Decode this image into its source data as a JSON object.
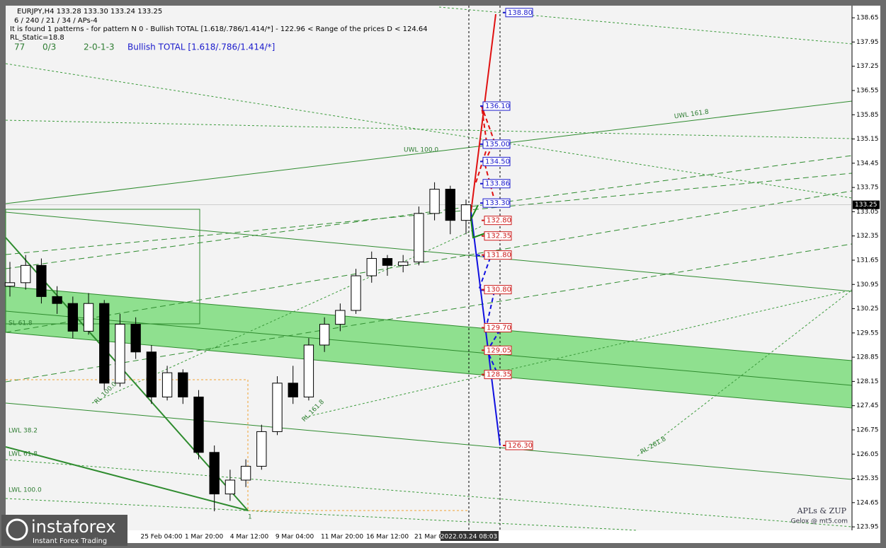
{
  "chart_data": {
    "type": "candlestick",
    "symbol_line": "EURJPY,H4  133.28 133.30 133.24 133.25",
    "params_line": "6 / 240 / 21 / 34 / APs-4",
    "pattern_line": "It is found 1 patterns  -  for pattern N 0 - Bullish TOTAL [1.618/.786/1.414/*] - 122.96 < Range of the prices D < 124.64",
    "static_line": "RL_Static=18.8",
    "stats": [
      "77",
      "0/3",
      "2-0-1-3"
    ],
    "pattern_name": "Bullish TOTAL [1.618/.786/1.414/*]",
    "ylim": [
      123.85,
      139.0
    ],
    "yticks": [
      123.95,
      124.65,
      125.35,
      126.05,
      126.75,
      127.45,
      128.15,
      128.85,
      129.55,
      130.25,
      130.95,
      131.65,
      132.35,
      133.05,
      133.75,
      134.45,
      135.15,
      135.85,
      136.55,
      137.25,
      137.95,
      138.65
    ],
    "current_price": 133.25,
    "time_labels": [
      "25 Feb 04:00",
      "1 Mar 20:00",
      "4 Mar 12:00",
      "9 Mar 04:00",
      "11 Mar 20:00",
      "16 Mar 12:00",
      "21 Mar 0",
      "2022.03.24 08:03"
    ],
    "candles": [
      {
        "open": 130.9,
        "high": 131.6,
        "low": 130.6,
        "close": 131.0
      },
      {
        "open": 131.0,
        "high": 131.8,
        "low": 130.8,
        "close": 131.5
      },
      {
        "open": 131.5,
        "high": 131.7,
        "low": 130.4,
        "close": 130.6
      },
      {
        "open": 130.6,
        "high": 130.9,
        "low": 130.1,
        "close": 130.4
      },
      {
        "open": 130.4,
        "high": 130.6,
        "low": 129.4,
        "close": 129.6
      },
      {
        "open": 129.6,
        "high": 130.7,
        "low": 129.5,
        "close": 130.4
      },
      {
        "open": 130.4,
        "high": 130.5,
        "low": 127.9,
        "close": 128.1
      },
      {
        "open": 128.1,
        "high": 130.1,
        "low": 128.0,
        "close": 129.8
      },
      {
        "open": 129.8,
        "high": 130.0,
        "low": 128.8,
        "close": 129.0
      },
      {
        "open": 129.0,
        "high": 129.2,
        "low": 127.5,
        "close": 127.7
      },
      {
        "open": 127.7,
        "high": 128.6,
        "low": 127.6,
        "close": 128.4
      },
      {
        "open": 128.4,
        "high": 128.5,
        "low": 127.5,
        "close": 127.7
      },
      {
        "open": 127.7,
        "high": 127.9,
        "low": 125.9,
        "close": 126.1
      },
      {
        "open": 126.1,
        "high": 126.3,
        "low": 124.4,
        "close": 124.9
      },
      {
        "open": 124.9,
        "high": 125.6,
        "low": 124.7,
        "close": 125.3
      },
      {
        "open": 125.3,
        "high": 125.9,
        "low": 125.1,
        "close": 125.7
      },
      {
        "open": 125.7,
        "high": 126.9,
        "low": 125.6,
        "close": 126.7
      },
      {
        "open": 126.7,
        "high": 128.3,
        "low": 126.6,
        "close": 128.1
      },
      {
        "open": 128.1,
        "high": 128.6,
        "low": 127.5,
        "close": 127.7
      },
      {
        "open": 127.7,
        "high": 129.4,
        "low": 127.6,
        "close": 129.2
      },
      {
        "open": 129.2,
        "high": 130.0,
        "low": 129.0,
        "close": 129.8
      },
      {
        "open": 129.8,
        "high": 130.4,
        "low": 129.6,
        "close": 130.2
      },
      {
        "open": 130.2,
        "high": 131.4,
        "low": 130.1,
        "close": 131.2
      },
      {
        "open": 131.2,
        "high": 131.9,
        "low": 131.0,
        "close": 131.7
      },
      {
        "open": 131.7,
        "high": 131.8,
        "low": 131.2,
        "close": 131.5
      },
      {
        "open": 131.5,
        "high": 131.8,
        "low": 131.3,
        "close": 131.6
      },
      {
        "open": 131.6,
        "high": 133.2,
        "low": 131.5,
        "close": 133.0
      },
      {
        "open": 133.0,
        "high": 133.9,
        "low": 132.8,
        "close": 133.7
      },
      {
        "open": 133.7,
        "high": 133.8,
        "low": 132.4,
        "close": 132.8
      },
      {
        "open": 132.8,
        "high": 133.4,
        "low": 132.4,
        "close": 133.25
      }
    ],
    "up_color": "#ffffff",
    "down_color": "#000000",
    "levels": [
      {
        "value": 138.8,
        "label": "138.80",
        "color": "#1a1acc"
      },
      {
        "value": 136.1,
        "label": "136.10",
        "color": "#1a1acc"
      },
      {
        "value": 135.0,
        "label": "135.00",
        "color": "#1a1acc"
      },
      {
        "value": 134.5,
        "label": "134.50",
        "color": "#1a1acc"
      },
      {
        "value": 133.86,
        "label": "133.86",
        "color": "#1a1acc"
      },
      {
        "value": 133.3,
        "label": "133.30",
        "color": "#1a1acc"
      },
      {
        "value": 132.8,
        "label": "132.80",
        "color": "#cc1a1a"
      },
      {
        "value": 132.35,
        "label": "132.35",
        "color": "#cc1a1a"
      },
      {
        "value": 131.8,
        "label": "131.80",
        "color": "#cc1a1a"
      },
      {
        "value": 130.8,
        "label": "130.80",
        "color": "#cc1a1a"
      },
      {
        "value": 129.7,
        "label": "129.70",
        "color": "#cc1a1a"
      },
      {
        "value": 129.05,
        "label": "129.05",
        "color": "#cc1a1a"
      },
      {
        "value": 128.35,
        "label": "128.35",
        "color": "#cc1a1a"
      },
      {
        "value": 126.3,
        "label": "126.30",
        "color": "#cc1a1a"
      }
    ],
    "annotations": [
      "UWL 161.8",
      "UWL 100.0",
      "RL 100.0",
      "RL 161.8",
      "RL 261.8",
      "LWL 38.2",
      "LWL 61.8",
      "LWL 100.0",
      "SL 61.8",
      "1"
    ],
    "credits": [
      "APLs & ZUP",
      "Gelox @ mt5.com"
    ],
    "logo": [
      "instaforex",
      "Instant Forex Trading"
    ]
  }
}
